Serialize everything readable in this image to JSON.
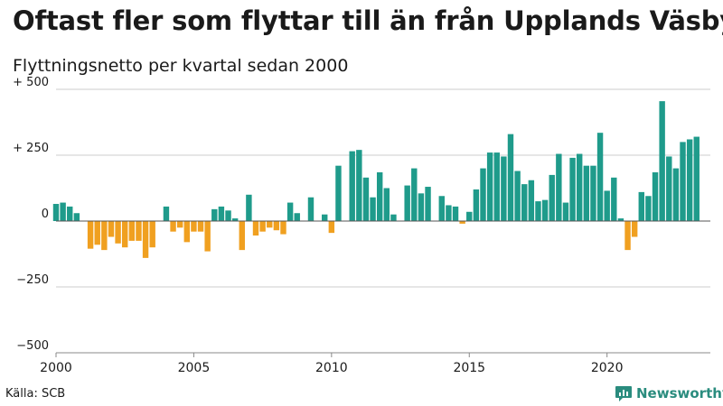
{
  "header": {
    "title": "Oftast fler som flyttar till än från Upplands Väsby",
    "subtitle": "Flyttningsnetto per kvartal sedan 2000"
  },
  "footer": {
    "source": "Källa: SCB",
    "brand": "Newsworthy",
    "brand_icon": "bar-chart-speech-icon"
  },
  "colors": {
    "positive": "#1f9b8b",
    "negative": "#f0a020",
    "grid": "#cccccc",
    "brand": "#2a8c7e"
  },
  "chart_data": {
    "type": "bar",
    "title": "Oftast fler som flyttar till än från Upplands Väsby",
    "subtitle": "Flyttningsnetto per kvartal sedan 2000",
    "xlabel": "",
    "ylabel": "",
    "ylim": [
      -500,
      500
    ],
    "yticks": [
      500,
      250,
      0,
      -250,
      -500
    ],
    "ytick_labels": [
      "+ 500",
      "+ 250",
      "0",
      "−250",
      "−500"
    ],
    "xticks": [
      2000,
      2005,
      2010,
      2015,
      2020
    ],
    "xlim": [
      2000,
      2023.75
    ],
    "grid": true,
    "legend": "none",
    "series": [
      {
        "start": "2000 Q1",
        "values": [
          65,
          70,
          55,
          30,
          0,
          -105,
          -90,
          -110,
          -60,
          -85,
          -100,
          -75,
          -75,
          -140,
          -100,
          0,
          55,
          -40,
          -25,
          -80,
          -40,
          -40,
          -115,
          45,
          55,
          40,
          10,
          -110,
          100,
          -55,
          -40,
          -25,
          -35,
          -50,
          70,
          30,
          0,
          90,
          0,
          25,
          -45,
          210,
          0,
          265,
          270,
          165,
          90,
          185,
          125,
          25,
          0,
          135,
          200,
          105,
          130,
          0,
          95,
          60,
          55,
          -10,
          35,
          120,
          200,
          260,
          260,
          245,
          330,
          190,
          140,
          155,
          75,
          80,
          175,
          255,
          70,
          240,
          255,
          210,
          210,
          335,
          115,
          165,
          10,
          -110,
          -60,
          110,
          95,
          185,
          455,
          245,
          200,
          300,
          310,
          320
        ]
      }
    ]
  }
}
